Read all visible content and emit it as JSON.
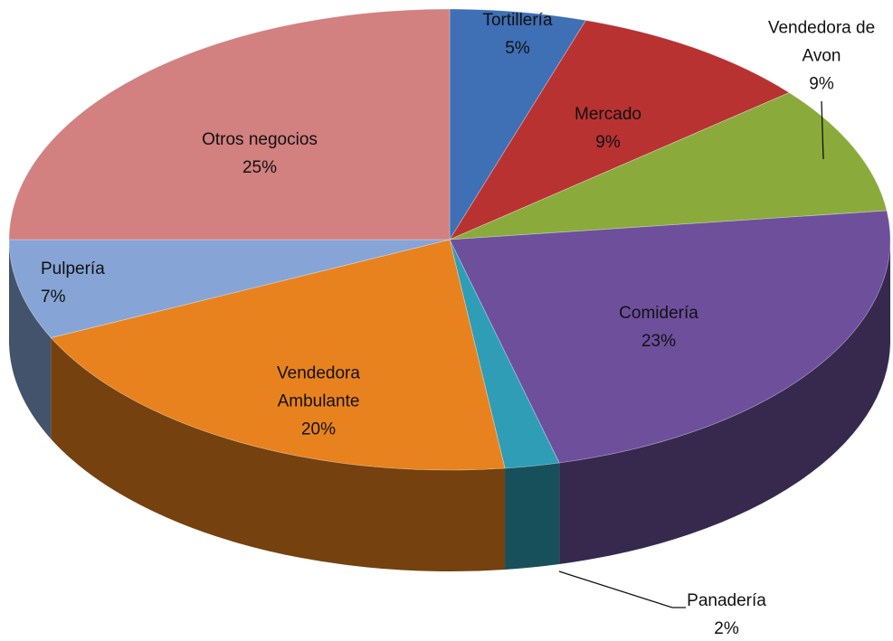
{
  "chart_data": {
    "type": "pie3d",
    "categories": [
      "Tortillería",
      "Mercado",
      "Vendedora de Avon",
      "Comidería",
      "Panadería",
      "Vendedora Ambulante",
      "Pulpería",
      "Otros negocios"
    ],
    "values": [
      5,
      9,
      9,
      23,
      2,
      20,
      7,
      25
    ],
    "value_labels": [
      "5%",
      "9%",
      "9%",
      "23%",
      "2%",
      "20%",
      "7%",
      "25%"
    ],
    "colors": [
      "#3f6fb5",
      "#b83232",
      "#8aab3c",
      "#6e4f9c",
      "#2e9db5",
      "#e8821e",
      "#86a5d6",
      "#d28080"
    ]
  }
}
